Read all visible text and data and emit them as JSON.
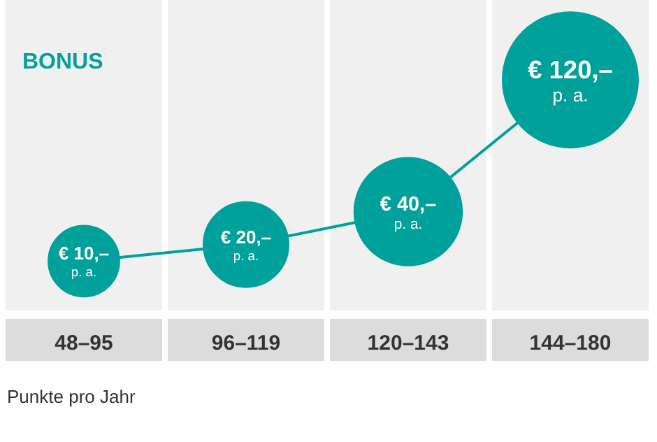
{
  "chart_data": {
    "type": "bubble",
    "title": "BONUS",
    "xlabel": "Punkte pro Jahr",
    "categories": [
      "48–95",
      "96–119",
      "120–143",
      "144–180"
    ],
    "series": [
      {
        "color": "#00a19a",
        "values": [
          10,
          20,
          40,
          120
        ],
        "sizes": [
          0.27,
          0.39,
          0.63,
          1
        ],
        "value_labels": [
          "€ 10,–\np. a.",
          "€ 20,–\np. a.",
          "€ 40,–\np. a.",
          "€ 120,–\np. a."
        ]
      }
    ],
    "tick_labels": "x",
    "line_style": "solid",
    "grid": false,
    "legend": false
  }
}
